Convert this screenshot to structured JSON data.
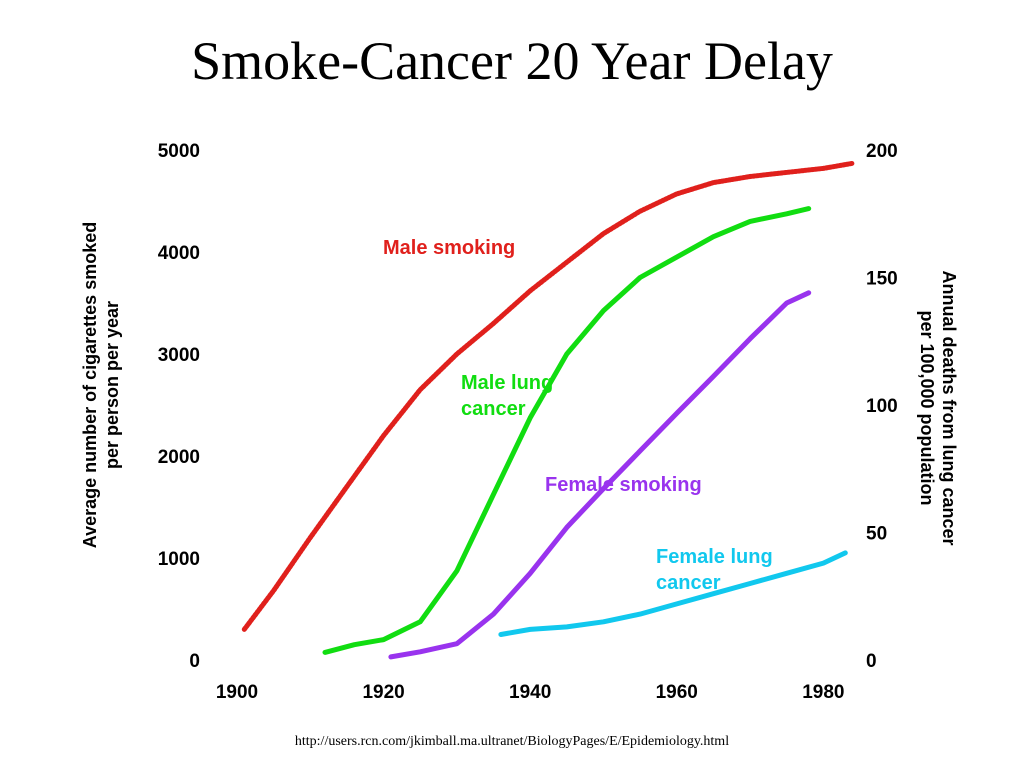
{
  "slide": {
    "title": "Smoke-Cancer 20 Year Delay",
    "source": "http://users.rcn.com/jkimball.ma.ultranet/BiologyPages/E/Epidemiology.html"
  },
  "chart_data": {
    "type": "line",
    "title": "Smoke-Cancer 20 Year Delay",
    "xlabel": "",
    "xlim": [
      1900,
      1985
    ],
    "x_ticks": [
      "1900",
      "1920",
      "1940",
      "1960",
      "1980"
    ],
    "y_left": {
      "label_lines": [
        "Average number of cigarettes smoked",
        "per person per year"
      ],
      "ylim": [
        0,
        5000
      ],
      "ticks": [
        "0",
        "1000",
        "2000",
        "3000",
        "4000",
        "5000"
      ]
    },
    "y_right": {
      "label_lines": [
        "Annual deaths from lung cancer",
        "per 100,000 population"
      ],
      "ylim": [
        0,
        200
      ],
      "ticks": [
        "0",
        "50",
        "100",
        "150",
        "200"
      ]
    },
    "grid": false,
    "legend": "inline labels",
    "series": [
      {
        "name": "Male smoking",
        "label_lines": [
          "Male smoking"
        ],
        "axis": "left",
        "color": "#e0201c",
        "marker": "dots",
        "points": [
          [
            1901,
            300
          ],
          [
            1905,
            680
          ],
          [
            1910,
            1200
          ],
          [
            1915,
            1700
          ],
          [
            1920,
            2200
          ],
          [
            1925,
            2650
          ],
          [
            1930,
            3000
          ],
          [
            1935,
            3300
          ],
          [
            1940,
            3620
          ],
          [
            1945,
            3900
          ],
          [
            1950,
            4180
          ],
          [
            1955,
            4400
          ],
          [
            1960,
            4570
          ],
          [
            1965,
            4680
          ],
          [
            1970,
            4740
          ],
          [
            1975,
            4780
          ],
          [
            1980,
            4820
          ],
          [
            1984,
            4870
          ]
        ]
      },
      {
        "name": "Male lung cancer",
        "label_lines": [
          "Male lung",
          "cancer"
        ],
        "axis": "right",
        "color": "#11dd11",
        "marker": "solid",
        "points": [
          [
            1912,
            3
          ],
          [
            1916,
            6
          ],
          [
            1920,
            8
          ],
          [
            1925,
            15
          ],
          [
            1930,
            35
          ],
          [
            1935,
            65
          ],
          [
            1940,
            95
          ],
          [
            1945,
            120
          ],
          [
            1950,
            137
          ],
          [
            1955,
            150
          ],
          [
            1960,
            158
          ],
          [
            1965,
            166
          ],
          [
            1970,
            172
          ],
          [
            1975,
            175
          ],
          [
            1978,
            177
          ]
        ]
      },
      {
        "name": "Female smoking",
        "label_lines": [
          "Female smoking"
        ],
        "axis": "left",
        "color": "#9933ee",
        "marker": "solid",
        "points": [
          [
            1921,
            30
          ],
          [
            1925,
            80
          ],
          [
            1930,
            160
          ],
          [
            1935,
            450
          ],
          [
            1940,
            850
          ],
          [
            1945,
            1300
          ],
          [
            1950,
            1680
          ],
          [
            1955,
            2050
          ],
          [
            1960,
            2420
          ],
          [
            1965,
            2780
          ],
          [
            1970,
            3150
          ],
          [
            1975,
            3500
          ],
          [
            1978,
            3600
          ]
        ]
      },
      {
        "name": "Female lung cancer",
        "label_lines": [
          "Female lung",
          "cancer"
        ],
        "axis": "right",
        "color": "#11c8ee",
        "marker": "solid",
        "points": [
          [
            1936,
            10
          ],
          [
            1940,
            12
          ],
          [
            1945,
            13
          ],
          [
            1950,
            15
          ],
          [
            1955,
            18
          ],
          [
            1960,
            22
          ],
          [
            1965,
            26
          ],
          [
            1970,
            30
          ],
          [
            1975,
            34
          ],
          [
            1980,
            38
          ],
          [
            1983,
            42
          ]
        ]
      }
    ]
  }
}
